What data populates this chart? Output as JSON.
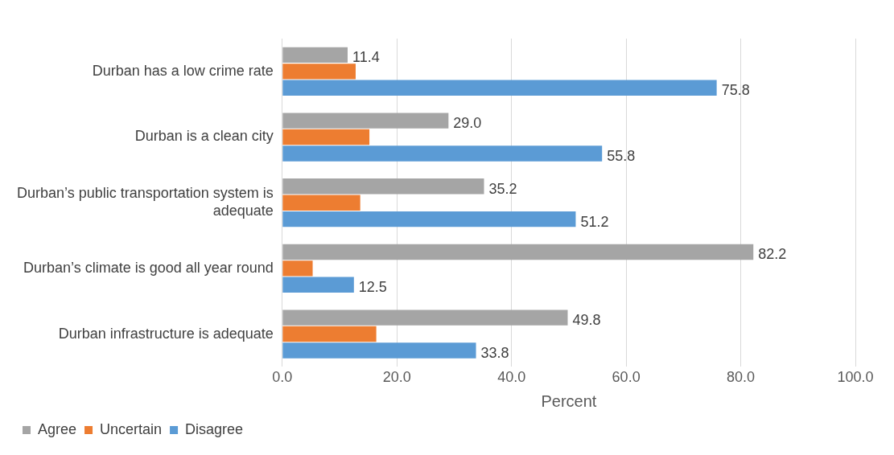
{
  "chart_data": {
    "type": "bar",
    "orientation": "horizontal",
    "xlabel": "Percent",
    "categories": [
      "Durban has a low crime rate",
      "Durban is a clean city",
      "Durban’s public transportation system is adequate",
      "Durban’s climate is good all year round",
      "Durban infrastructure is adequate"
    ],
    "series": [
      {
        "name": "Agree",
        "color": "#a5a5a5",
        "values": [
          11.4,
          29.0,
          35.2,
          82.2,
          49.8
        ],
        "value_labels": [
          "11.4",
          "29.0",
          "35.2",
          "82.2",
          "49.8"
        ]
      },
      {
        "name": "Uncertain",
        "color": "#ed7d31",
        "values": [
          12.8,
          15.2,
          13.6,
          5.3,
          16.4
        ],
        "value_labels": [
          null,
          null,
          null,
          null,
          null
        ]
      },
      {
        "name": "Disagree",
        "color": "#5b9bd5",
        "values": [
          75.8,
          55.8,
          51.2,
          12.5,
          33.8
        ],
        "value_labels": [
          "75.8",
          "55.8",
          "51.2",
          "12.5",
          "33.8"
        ]
      }
    ],
    "xlim": [
      0,
      100
    ],
    "xticks": [
      {
        "value": 0,
        "label": "0.0"
      },
      {
        "value": 20,
        "label": "20.0"
      },
      {
        "value": 40,
        "label": "40.0"
      },
      {
        "value": 60,
        "label": "60.0"
      },
      {
        "value": 80,
        "label": "80.0"
      },
      {
        "value": 100,
        "label": "100.0"
      }
    ],
    "grid": "x",
    "legend": "bottom left"
  }
}
